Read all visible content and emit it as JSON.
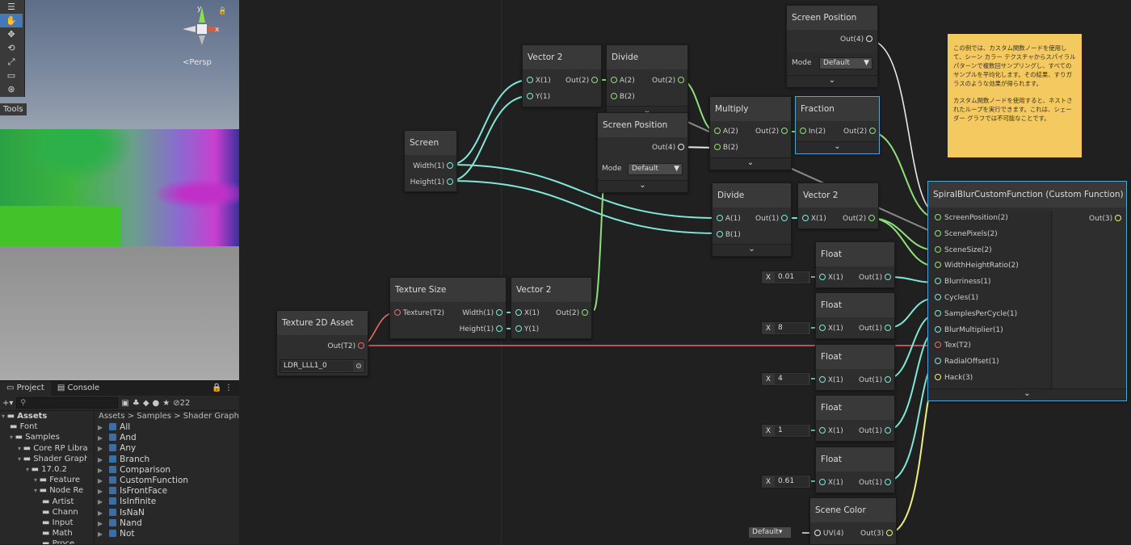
{
  "scene": {
    "tools_label": "Tools",
    "persp_label": "Persp",
    "gizmo_axis_y": "y",
    "gizmo_axis_x": "x"
  },
  "project_panel": {
    "tab_project": "Project",
    "tab_console": "Console",
    "hidden_count": "22",
    "tree": [
      {
        "label": "Assets",
        "indent": 0
      },
      {
        "label": "Font",
        "indent": 1
      },
      {
        "label": "Samples",
        "indent": 1
      },
      {
        "label": "Core RP Libra",
        "indent": 2
      },
      {
        "label": "Shader Graph",
        "indent": 2
      },
      {
        "label": "17.0.2",
        "indent": 3
      },
      {
        "label": "Feature",
        "indent": 4
      },
      {
        "label": "Node Re",
        "indent": 4
      },
      {
        "label": "Artist",
        "indent": 5
      },
      {
        "label": "Chann",
        "indent": 5
      },
      {
        "label": "Input",
        "indent": 5
      },
      {
        "label": "Math",
        "indent": 5
      },
      {
        "label": "Proce",
        "indent": 5
      }
    ],
    "breadcrumb": "Assets > Samples > Shader Graph",
    "files": [
      "All",
      "And",
      "Any",
      "Branch",
      "Comparison",
      "CustomFunction",
      "IsFrontFace",
      "IsInfinite",
      "IsNaN",
      "Nand",
      "Not"
    ]
  },
  "nodes": {
    "screen_position_top": {
      "title": "Screen Position",
      "out": "Out(4)",
      "mode_label": "Mode",
      "mode_value": "Default"
    },
    "vector2_a": {
      "title": "Vector 2",
      "in_x": "X(1)",
      "in_y": "Y(1)",
      "out": "Out(2)"
    },
    "divide_a": {
      "title": "Divide",
      "in_a": "A(2)",
      "in_b": "B(2)",
      "out": "Out(2)"
    },
    "screen_position_mid": {
      "title": "Screen Position",
      "out": "Out(4)",
      "mode_label": "Mode",
      "mode_value": "Default"
    },
    "screen": {
      "title": "Screen",
      "out_width": "Width(1)",
      "out_height": "Height(1)"
    },
    "multiply": {
      "title": "Multiply",
      "in_a": "A(2)",
      "in_b": "B(2)",
      "out": "Out(2)"
    },
    "fraction": {
      "title": "Fraction",
      "in": "In(2)",
      "out": "Out(2)"
    },
    "divide_b": {
      "title": "Divide",
      "in_a": "A(1)",
      "in_b": "B(1)",
      "out": "Out(1)"
    },
    "vector2_b": {
      "title": "Vector 2",
      "in_x": "X(1)",
      "out": "Out(2)"
    },
    "texture_size": {
      "title": "Texture Size",
      "in_tex": "Texture(T2)",
      "out_width": "Width(1)",
      "out_height": "Height(1)"
    },
    "vector2_c": {
      "title": "Vector 2",
      "in_x": "X(1)",
      "in_y": "Y(1)",
      "out": "Out(2)"
    },
    "texture2d_asset": {
      "title": "Texture 2D Asset",
      "out": "Out(T2)",
      "asset": "LDR_LLL1_0"
    },
    "float_1": {
      "title": "Float",
      "in": "X(1)",
      "out": "Out(1)",
      "field_label": "X",
      "value": "0.01"
    },
    "float_2": {
      "title": "Float",
      "in": "X(1)",
      "out": "Out(1)",
      "field_label": "X",
      "value": "8"
    },
    "float_3": {
      "title": "Float",
      "in": "X(1)",
      "out": "Out(1)",
      "field_label": "X",
      "value": "4"
    },
    "float_4": {
      "title": "Float",
      "in": "X(1)",
      "out": "Out(1)",
      "field_label": "X",
      "value": "1"
    },
    "float_5": {
      "title": "Float",
      "in": "X(1)",
      "out": "Out(1)",
      "field_label": "X",
      "value": "0.61"
    },
    "scene_color": {
      "title": "Scene Color",
      "in": "UV(4)",
      "out": "Out(3)",
      "uv_default": "Default"
    },
    "custom_function": {
      "title": "SpiralBlurCustomFunction (Custom Function)",
      "out": "Out(3)",
      "inputs": [
        "ScreenPosition(2)",
        "ScenePixels(2)",
        "SceneSize(2)",
        "WidthHeightRatio(2)",
        "Blurriness(1)",
        "Cycles(1)",
        "SamplesPerCycle(1)",
        "BlurMultiplier(1)",
        "Tex(T2)",
        "RadialOffset(1)",
        "Hack(3)"
      ]
    }
  },
  "sticky_note": {
    "paragraph_1": "この例では、カスタム関数ノードを使用して、シーン カラー テクスチャからスパイラル パターンで複数回サンプリングし、すべてのサンプルを平均化します。その結果、すりガラスのような効果が得られます。",
    "paragraph_2": "カスタム関数ノードを使用すると、ネストされたループを実行できます。これは、シェーダー グラフでは不可能なことです。"
  },
  "colors": {
    "wire_vector": "#7fe8d8",
    "wire_vector2": "#8fe07a",
    "wire_vector4": "#e8e8e8",
    "wire_texture": "#e86b6b",
    "wire_vector3": "#f0f07a",
    "sticky": "#f3c960",
    "selected_border": "#4aa8d8"
  }
}
